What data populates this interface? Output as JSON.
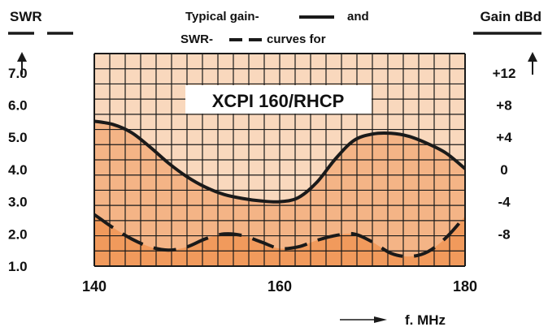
{
  "chart_data": {
    "type": "line",
    "title_lines": [
      {
        "text": "Typical gain-",
        "suffix": "and"
      },
      {
        "text": "SWR-",
        "suffix": "curves for"
      }
    ],
    "inner_title": "XCPI 160/RHCP",
    "left_axis": {
      "label": "SWR",
      "ticks": [
        "7.0",
        "6.0",
        "5.0",
        "4.0",
        "3.0",
        "2.0",
        "1.0"
      ],
      "tick_values": [
        7,
        6,
        5,
        4,
        3,
        2,
        1
      ],
      "range": [
        1,
        7.6
      ]
    },
    "right_axis": {
      "label": "Gain dBd",
      "ticks": [
        "+12",
        "+8",
        "+4",
        "0",
        "-4",
        "-8"
      ],
      "tick_values": [
        12,
        8,
        4,
        0,
        -4,
        -8
      ],
      "range": [
        -12,
        14.4
      ]
    },
    "x_axis": {
      "label": "f. MHz",
      "ticks": [
        "140",
        "160",
        "180"
      ],
      "tick_values": [
        140,
        160,
        180
      ],
      "range": [
        140,
        180
      ]
    },
    "grid": true,
    "series": [
      {
        "line_style": "solid",
        "axis": "right",
        "quantity": "gain",
        "x": [
          140,
          142,
          144,
          146,
          148,
          150,
          152,
          154,
          156,
          158,
          160,
          162,
          164,
          166,
          168,
          170,
          172,
          174,
          176,
          178,
          180
        ],
        "y": [
          6.0,
          5.6,
          4.6,
          2.8,
          0.8,
          -0.9,
          -2.2,
          -3.1,
          -3.6,
          -3.9,
          -4.0,
          -3.5,
          -1.6,
          1.3,
          3.6,
          4.4,
          4.5,
          4.1,
          3.2,
          2.0,
          0.1
        ]
      },
      {
        "line_style": "dashed",
        "axis": "left",
        "quantity": "SWR",
        "x": [
          140,
          142,
          144,
          146,
          148,
          150,
          152,
          154,
          156,
          158,
          160,
          162,
          164,
          166,
          168,
          170,
          172,
          174,
          176,
          178,
          180
        ],
        "y": [
          2.6,
          2.2,
          1.85,
          1.6,
          1.5,
          1.6,
          1.85,
          2.0,
          1.95,
          1.75,
          1.55,
          1.6,
          1.8,
          1.95,
          2.0,
          1.75,
          1.4,
          1.3,
          1.45,
          1.9,
          2.55
        ]
      }
    ],
    "colors": {
      "band_light": "#f9d8bd",
      "band_mid": "#f4b486",
      "band_dark": "#f19a5c",
      "grid": "#1a1a1a",
      "curve": "#1a1a1a"
    }
  }
}
